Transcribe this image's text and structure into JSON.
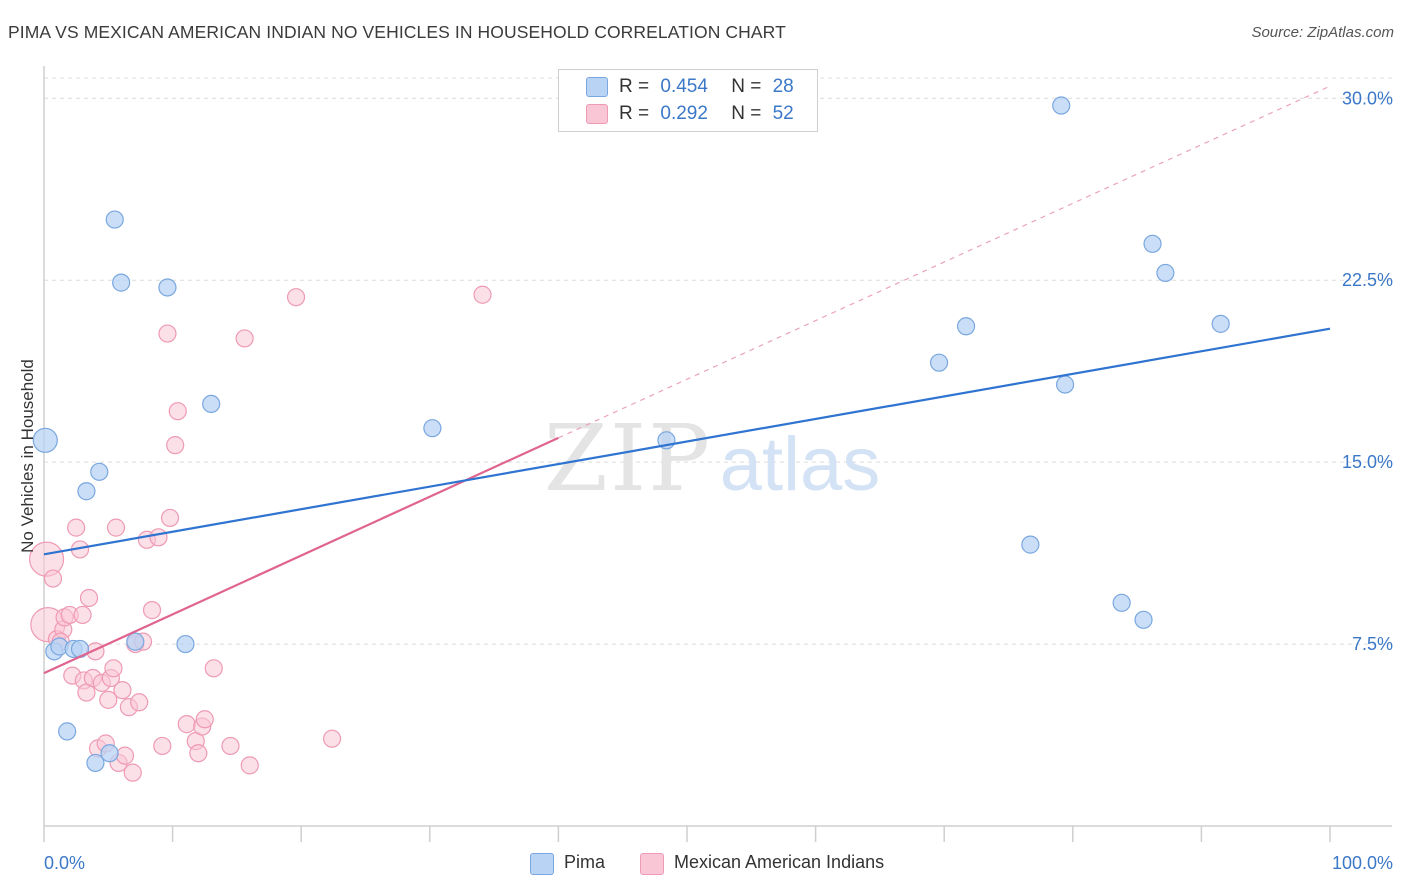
{
  "header": {
    "title": "PIMA VS MEXICAN AMERICAN INDIAN NO VEHICLES IN HOUSEHOLD CORRELATION CHART",
    "source": "Source: ZipAtlas.com"
  },
  "legend": {
    "pima": {
      "r_label": "R =",
      "r_value": "0.454",
      "n_label": "N =",
      "n_value": "28"
    },
    "mexican": {
      "r_label": "R =",
      "r_value": "0.292",
      "n_label": "N =",
      "n_value": "52"
    }
  },
  "bottom_legend": {
    "pima": "Pima",
    "mexican": "Mexican American Indians"
  },
  "watermark": {
    "zip": "ZIP",
    "atlas": "atlas"
  },
  "colors": {
    "pima_fill": "#b8d3f4",
    "pima_stroke": "#7aa7df",
    "pima_line": "#2f74d0",
    "mex_fill": "#f9c6d6",
    "mex_stroke": "#ee9ab4",
    "mex_line": "#e0648f",
    "tick_label": "#3b78c8",
    "grid": "#dcdcdc"
  },
  "chart_data": {
    "type": "scatter",
    "title": "PIMA VS MEXICAN AMERICAN INDIAN NO VEHICLES IN HOUSEHOLD CORRELATION CHART",
    "xlabel": "",
    "ylabel": "No Vehicles in Household",
    "xlim": [
      0,
      100
    ],
    "ylim": [
      0,
      31
    ],
    "x_tick_labels": [
      "0.0%",
      "100.0%"
    ],
    "y_ticks": [
      7.5,
      15.0,
      22.5,
      30.0
    ],
    "y_tick_labels": [
      "7.5%",
      "15.0%",
      "22.5%",
      "30.0%"
    ],
    "grid": true,
    "series": [
      {
        "name": "Pima",
        "r": 0.454,
        "n": 28,
        "points": [
          [
            0.1,
            15.9,
            "large"
          ],
          [
            0.8,
            7.2
          ],
          [
            1.2,
            7.4
          ],
          [
            2.3,
            7.3
          ],
          [
            2.8,
            7.3
          ],
          [
            1.8,
            3.9
          ],
          [
            3.3,
            13.8
          ],
          [
            4.3,
            14.6
          ],
          [
            5.5,
            25.0
          ],
          [
            6.0,
            22.4
          ],
          [
            7.1,
            7.6
          ],
          [
            9.6,
            22.2
          ],
          [
            11.0,
            7.5
          ],
          [
            13.0,
            17.4
          ],
          [
            4.0,
            2.6
          ],
          [
            5.1,
            3.0
          ],
          [
            30.2,
            16.4
          ],
          [
            48.4,
            15.9
          ],
          [
            69.6,
            19.1
          ],
          [
            71.7,
            20.6
          ],
          [
            76.7,
            11.6
          ],
          [
            79.1,
            29.7
          ],
          [
            79.4,
            18.2
          ],
          [
            83.8,
            9.2
          ],
          [
            85.5,
            8.5
          ],
          [
            86.2,
            24.0
          ],
          [
            87.2,
            22.8
          ],
          [
            91.5,
            20.7
          ]
        ],
        "trend": {
          "x": [
            0,
            100
          ],
          "y": [
            11.2,
            20.5
          ]
        }
      },
      {
        "name": "Mexican American Indians",
        "r": 0.292,
        "n": 52,
        "points": [
          [
            0.2,
            11.0,
            "large"
          ],
          [
            0.3,
            8.3,
            "large"
          ],
          [
            0.7,
            10.2
          ],
          [
            1.0,
            7.7
          ],
          [
            1.5,
            8.1
          ],
          [
            1.6,
            8.6
          ],
          [
            2.0,
            8.7
          ],
          [
            2.2,
            6.2
          ],
          [
            2.5,
            12.3
          ],
          [
            2.8,
            11.4
          ],
          [
            3.1,
            6.0
          ],
          [
            3.3,
            5.5
          ],
          [
            3.5,
            9.4
          ],
          [
            3.8,
            6.1
          ],
          [
            4.0,
            7.2
          ],
          [
            4.2,
            3.2
          ],
          [
            4.5,
            5.9
          ],
          [
            4.8,
            3.4
          ],
          [
            5.0,
            5.2
          ],
          [
            5.2,
            6.1
          ],
          [
            5.4,
            6.5
          ],
          [
            5.6,
            12.3
          ],
          [
            5.8,
            2.6
          ],
          [
            6.1,
            5.6
          ],
          [
            6.3,
            2.9
          ],
          [
            6.6,
            4.9
          ],
          [
            6.9,
            2.2
          ],
          [
            7.1,
            7.5
          ],
          [
            7.4,
            5.1
          ],
          [
            7.7,
            7.6
          ],
          [
            8.0,
            11.8
          ],
          [
            8.4,
            8.9
          ],
          [
            8.9,
            11.9
          ],
          [
            9.2,
            3.3
          ],
          [
            9.6,
            20.3
          ],
          [
            9.8,
            12.7
          ],
          [
            10.2,
            15.7
          ],
          [
            10.4,
            17.1
          ],
          [
            11.1,
            4.2
          ],
          [
            11.8,
            3.5
          ],
          [
            12.0,
            3.0
          ],
          [
            12.3,
            4.1
          ],
          [
            12.5,
            4.4
          ],
          [
            13.2,
            6.5
          ],
          [
            14.5,
            3.3
          ],
          [
            15.6,
            20.1
          ],
          [
            16.0,
            2.5
          ],
          [
            19.6,
            21.8
          ],
          [
            22.4,
            3.6
          ],
          [
            34.1,
            21.9
          ],
          [
            3.0,
            8.7
          ],
          [
            1.3,
            7.6
          ]
        ],
        "trend": {
          "x": [
            0,
            40
          ],
          "y": [
            6.3,
            16.0
          ]
        },
        "trend_extension": {
          "x": [
            40,
            100
          ],
          "y": [
            16.0,
            30.5
          ]
        }
      }
    ]
  }
}
